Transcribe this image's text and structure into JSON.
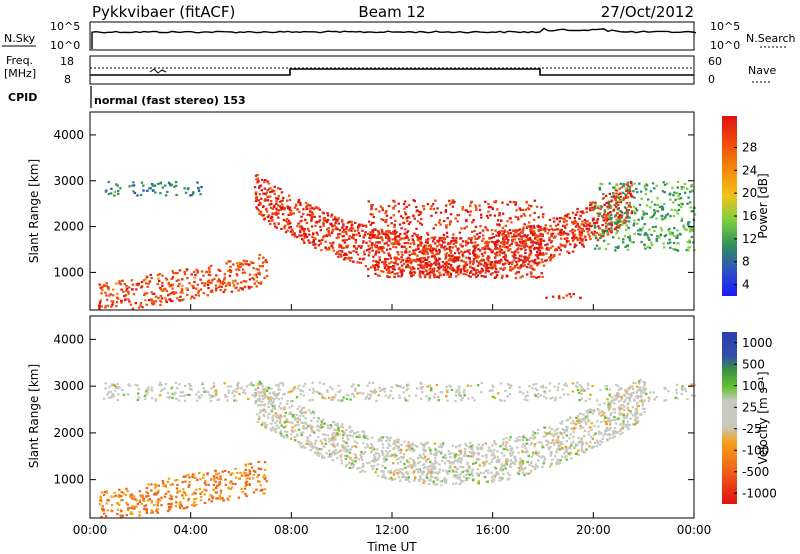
{
  "header": {
    "title": "Pykkvibaer (fitACF)",
    "beam": "Beam 12",
    "date": "27/Oct/2012"
  },
  "top_panels": {
    "nsky": {
      "label": "N.Sky",
      "tick_top": "10^5",
      "tick_bottom": "10^0",
      "right_label": "N.Search",
      "right_tick_top": "10^5",
      "right_tick_bottom": "10^0"
    },
    "freq": {
      "label_line1": "Freq.",
      "label_line2": "[MHz]",
      "tick_top": "18",
      "tick_bottom": "8",
      "right_label": "Nave",
      "right_tick_top": "60",
      "right_tick_bottom": "0"
    },
    "cpid": {
      "label": "CPID",
      "value": "normal (fast stereo) 153"
    }
  },
  "chart_data": [
    {
      "type": "heatmap",
      "title": "",
      "parameter": "Power",
      "xlabel": "Time UT",
      "ylabel": "Slant Range [km]",
      "xlim": [
        0,
        24
      ],
      "ylim": [
        180,
        4500
      ],
      "y_ticks": [
        "4000",
        "3000",
        "2000",
        "1000"
      ],
      "y_tick_values": [
        4000,
        3000,
        2000,
        1000
      ],
      "colorbar": {
        "label": "Power [dB]",
        "tick_labels": [
          "28",
          "24",
          "20",
          "16",
          "12",
          "8",
          "4"
        ],
        "range": [
          0,
          30
        ],
        "colors": [
          "#1a1aff",
          "#2e4fc4",
          "#2f8f5a",
          "#7ccf3b",
          "#f2c21b",
          "#f58a0c",
          "#f04a0a",
          "#e01313"
        ]
      },
      "features": [
        {
          "name": "near range echoes",
          "t_start": 0.3,
          "t_end": 7.0,
          "range_km": [
            300,
            1300
          ],
          "power_db": 26
        },
        {
          "name": "far range patches",
          "t_start": 0.5,
          "t_end": 4.5,
          "range_km": [
            2700,
            3000
          ],
          "power_db": 8
        },
        {
          "name": "night-side arc",
          "t_start": 6.5,
          "t_end": 21.5,
          "range_km": [
            900,
            2800
          ],
          "power_db": 28
        },
        {
          "name": "F-region streaks",
          "t_start": 11.0,
          "t_end": 18.0,
          "range_km": [
            900,
            2600
          ],
          "power_db": 28
        },
        {
          "name": "late near-range patch",
          "t_start": 18.0,
          "t_end": 19.5,
          "range_km": [
            450,
            600
          ],
          "power_db": 28
        },
        {
          "name": "evening high-range band",
          "t_start": 20.0,
          "t_end": 24.0,
          "range_km": [
            1500,
            3000
          ],
          "power_db": 10
        }
      ]
    },
    {
      "type": "heatmap",
      "title": "",
      "parameter": "Velocity",
      "xlabel": "Time UT",
      "ylabel": "Slant Range [km]",
      "xlim": [
        0,
        24
      ],
      "ylim": [
        180,
        4500
      ],
      "x_ticks": [
        "00:00",
        "04:00",
        "08:00",
        "12:00",
        "16:00",
        "20:00",
        "00:00"
      ],
      "x_tick_values": [
        0,
        4,
        8,
        12,
        16,
        20,
        24
      ],
      "y_ticks": [
        "4000",
        "3000",
        "2000",
        "1000"
      ],
      "y_tick_values": [
        4000,
        3000,
        2000,
        1000
      ],
      "colorbar": {
        "label": "Velocity [m s⁻¹]",
        "tick_labels": [
          "1000",
          "500",
          "100",
          "25",
          "-25",
          "-100",
          "-500",
          "-1000"
        ],
        "colors": [
          "#2b3fb0",
          "#3b8f3b",
          "#62c332",
          "#c8c8c0",
          "#c8c8c0",
          "#f4a11a",
          "#f0641a",
          "#e01313"
        ]
      },
      "features": [
        {
          "name": "near range negative velocity",
          "t_start": 0.3,
          "t_end": 7.0,
          "range_km": [
            300,
            1300
          ],
          "velocity": -100
        },
        {
          "name": "night-side arc near-zero velocity",
          "t_start": 6.5,
          "t_end": 22.0,
          "range_km": [
            900,
            2800
          ],
          "velocity": 0
        },
        {
          "name": "scattered far-range echoes",
          "t_start": 0.5,
          "t_end": 24.0,
          "range_km": [
            2700,
            3100
          ],
          "velocity": 0
        }
      ]
    }
  ]
}
